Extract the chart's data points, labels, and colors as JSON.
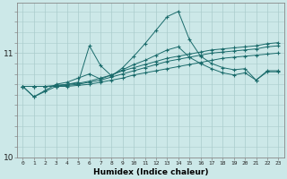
{
  "title": "",
  "xlabel": "Humidex (Indice chaleur)",
  "background_color": "#cce8e8",
  "grid_color": "#aacccc",
  "line_color": "#1a6b6b",
  "x": [
    0,
    1,
    2,
    3,
    4,
    5,
    6,
    7,
    8,
    9,
    10,
    11,
    12,
    13,
    14,
    15,
    16,
    17,
    18,
    19,
    20,
    21,
    22,
    23
  ],
  "s1": [
    10.68,
    10.68,
    10.68,
    10.68,
    10.68,
    10.69,
    10.7,
    10.72,
    10.74,
    10.76,
    10.79,
    10.81,
    10.83,
    10.85,
    10.87,
    10.89,
    10.91,
    10.93,
    10.95,
    10.96,
    10.97,
    10.98,
    10.99,
    11.0
  ],
  "s2": [
    10.68,
    10.68,
    10.68,
    10.68,
    10.69,
    10.7,
    10.72,
    10.74,
    10.77,
    10.8,
    10.83,
    10.86,
    10.89,
    10.92,
    10.94,
    10.96,
    10.98,
    11.0,
    11.01,
    11.02,
    11.03,
    11.04,
    11.06,
    11.07
  ],
  "s3": [
    10.68,
    10.68,
    10.68,
    10.69,
    10.7,
    10.71,
    10.73,
    10.76,
    10.79,
    10.83,
    10.86,
    10.89,
    10.92,
    10.95,
    10.97,
    10.99,
    11.01,
    11.03,
    11.04,
    11.05,
    11.06,
    11.07,
    11.09,
    11.1
  ],
  "s4": [
    10.68,
    10.58,
    10.64,
    10.7,
    10.72,
    10.76,
    10.8,
    10.75,
    10.79,
    10.84,
    10.89,
    10.93,
    10.98,
    11.03,
    11.06,
    10.96,
    10.9,
    10.85,
    10.81,
    10.79,
    10.81,
    10.74,
    10.82,
    10.82
  ],
  "s5": [
    10.68,
    10.58,
    10.63,
    10.68,
    10.7,
    10.72,
    11.07,
    10.88,
    10.78,
    10.86,
    10.97,
    11.09,
    11.22,
    11.35,
    11.4,
    11.13,
    10.97,
    10.9,
    10.86,
    10.84,
    10.85,
    10.74,
    10.83,
    10.83
  ],
  "ylim": [
    10.45,
    11.48
  ],
  "xlim": [
    -0.5,
    23.5
  ],
  "yticks": [
    10,
    11
  ],
  "xticks": [
    0,
    1,
    2,
    3,
    4,
    5,
    6,
    7,
    8,
    9,
    10,
    11,
    12,
    13,
    14,
    15,
    16,
    17,
    18,
    19,
    20,
    21,
    22,
    23
  ]
}
